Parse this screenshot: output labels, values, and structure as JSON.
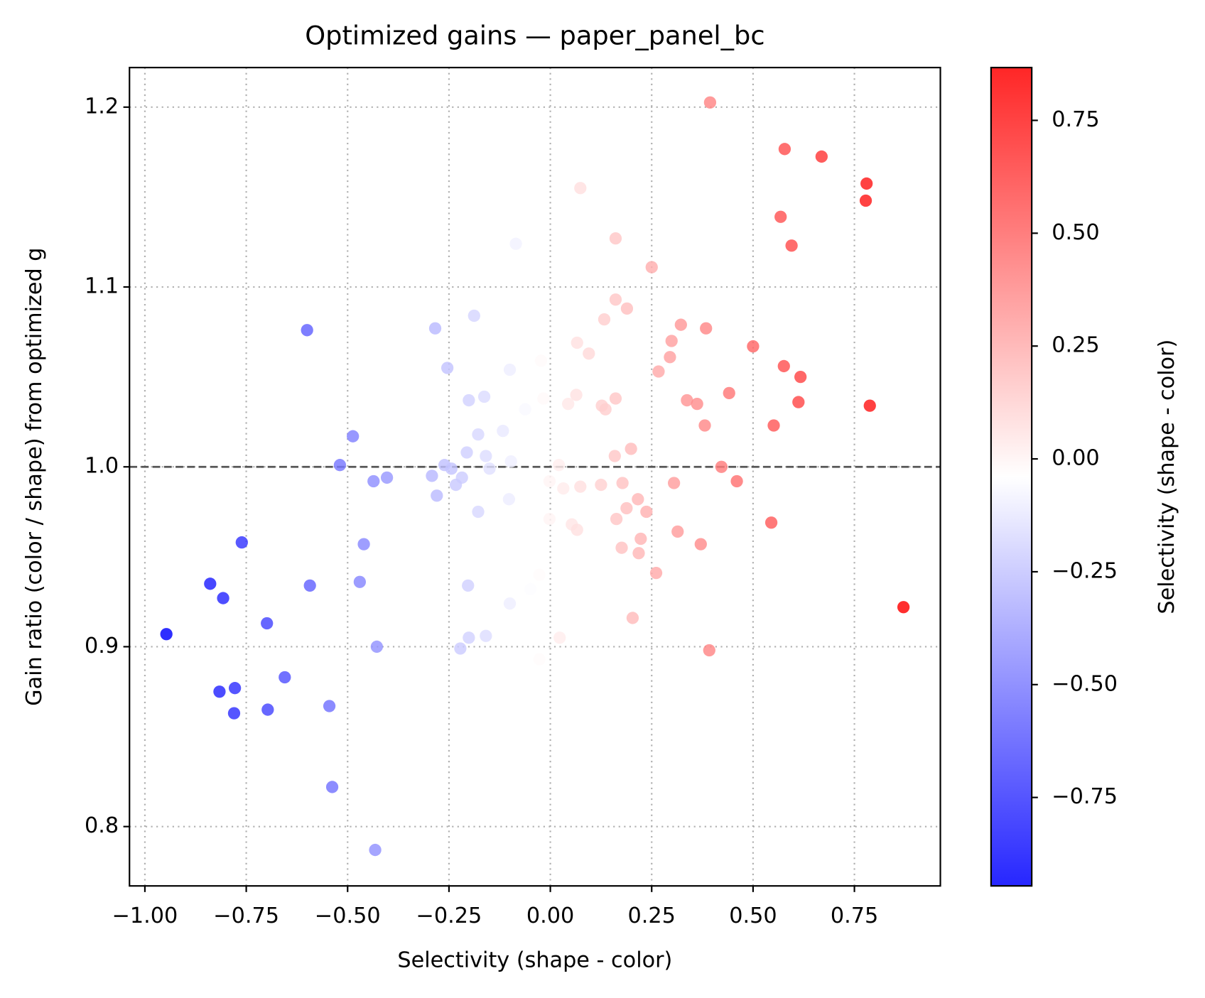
{
  "chart_data": {
    "type": "scatter",
    "title": "Optimized gains — paper_panel_bc",
    "x_label": "Selectivity (shape - color)",
    "y_label": "Gain ratio (color / shape) from optimized g",
    "x": [
      0.394,
      0.578,
      0.669,
      0.78,
      0.778,
      0.074,
      0.568,
      0.595,
      0.161,
      -0.085,
      0.25,
      0.161,
      0.189,
      0.133,
      -0.188,
      -0.6,
      -0.284,
      0.322,
      0.384,
      0.299,
      0.066,
      0.5,
      0.095,
      0.295,
      -0.023,
      0.576,
      -0.1,
      -0.254,
      0.267,
      0.617,
      0.441,
      0.064,
      -0.163,
      -0.201,
      0.161,
      0.337,
      -0.017,
      0.044,
      0.612,
      0.127,
      0.136,
      -0.062,
      0.362,
      0.788,
      0.381,
      0.551,
      -0.117,
      -0.178,
      -0.487,
      0.199,
      -0.206,
      0.159,
      -0.159,
      -0.261,
      -0.519,
      -0.097,
      -0.244,
      0.021,
      -0.15,
      0.422,
      -0.218,
      -0.403,
      -0.436,
      -0.292,
      -0.002,
      -0.233,
      0.032,
      0.074,
      0.178,
      0.305,
      0.46,
      0.125,
      -0.28,
      0.216,
      -0.102,
      0.237,
      0.188,
      -0.178,
      -0.002,
      0.163,
      0.053,
      0.066,
      0.545,
      0.314,
      0.223,
      0.176,
      0.371,
      -0.46,
      -0.761,
      0.218,
      0.261,
      -0.839,
      -0.47,
      -0.593,
      -0.203,
      -0.027,
      -0.049,
      -0.807,
      -0.1,
      0.871,
      -0.699,
      0.203,
      -0.947,
      -0.201,
      -0.159,
      0.023,
      -0.428,
      -0.222,
      0.392,
      -0.027,
      -0.655,
      -0.778,
      -0.816,
      -0.78,
      -0.697,
      -0.545,
      -0.538,
      -0.432
    ],
    "y": [
      1.2026,
      1.1767,
      1.1725,
      1.1575,
      1.148,
      1.155,
      1.139,
      1.123,
      1.127,
      1.124,
      1.111,
      1.093,
      1.088,
      1.082,
      1.084,
      1.076,
      1.077,
      1.079,
      1.077,
      1.07,
      1.069,
      1.067,
      1.063,
      1.061,
      1.059,
      1.056,
      1.054,
      1.055,
      1.053,
      1.05,
      1.041,
      1.04,
      1.039,
      1.037,
      1.038,
      1.037,
      1.038,
      1.035,
      1.036,
      1.034,
      1.032,
      1.032,
      1.035,
      1.034,
      1.023,
      1.023,
      1.02,
      1.018,
      1.017,
      1.01,
      1.008,
      1.006,
      1.006,
      1.001,
      1.001,
      1.003,
      0.999,
      1.001,
      0.999,
      1.0,
      0.994,
      0.994,
      0.992,
      0.995,
      0.992,
      0.99,
      0.988,
      0.989,
      0.991,
      0.991,
      0.992,
      0.99,
      0.984,
      0.982,
      0.982,
      0.975,
      0.977,
      0.975,
      0.971,
      0.971,
      0.968,
      0.965,
      0.969,
      0.964,
      0.96,
      0.955,
      0.957,
      0.957,
      0.958,
      0.952,
      0.941,
      0.935,
      0.936,
      0.934,
      0.934,
      0.94,
      0.932,
      0.927,
      0.924,
      0.922,
      0.913,
      0.916,
      0.907,
      0.905,
      0.906,
      0.905,
      0.9,
      0.899,
      0.898,
      0.893,
      0.883,
      0.877,
      0.875,
      0.863,
      0.865,
      0.867,
      0.822,
      0.787
    ],
    "xlim": [
      -1.038,
      0.962
    ],
    "ylim": [
      0.767,
      1.222
    ],
    "xticks": [
      {
        "value": -1,
        "label": "−1.00"
      },
      {
        "value": -0.75,
        "label": "−0.75"
      },
      {
        "value": -0.5,
        "label": "−0.50"
      },
      {
        "value": -0.25,
        "label": "−0.25"
      },
      {
        "value": 0,
        "label": "0.00"
      },
      {
        "value": 0.25,
        "label": "0.25"
      },
      {
        "value": 0.5,
        "label": "0.50"
      },
      {
        "value": 0.75,
        "label": "0.75"
      }
    ],
    "yticks": [
      0.8,
      0.9,
      {
        "value": 1,
        "label": "1.0"
      },
      1.1,
      1.2
    ],
    "grid": true,
    "hline": 1,
    "colormap": "bwr",
    "clim": [
      -0.946,
      0.867
    ],
    "colorbar_label": "Selectivity (shape - color)",
    "cticks": [
      {
        "value": -0.75,
        "label": "−0.75"
      },
      {
        "value": -0.5,
        "label": "−0.50"
      },
      {
        "value": -0.25,
        "label": "−0.25"
      },
      {
        "value": 0,
        "label": "0.00"
      },
      0.25,
      {
        "value": 0.5,
        "label": "0.50"
      },
      0.75
    ]
  }
}
